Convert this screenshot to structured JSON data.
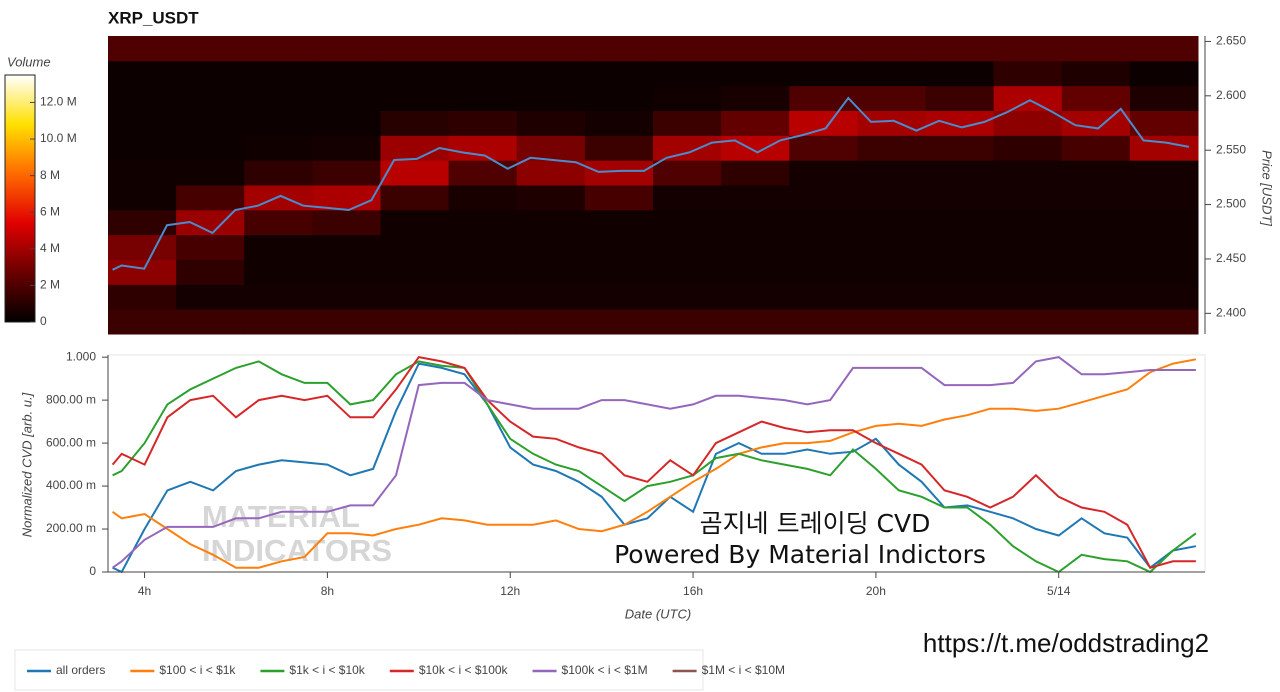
{
  "chart_data": [
    {
      "type": "heatmap",
      "title": "XRP_USDT",
      "y_label": "Price [USDT]",
      "x": [
        3.3,
        3.5,
        4.0,
        4.5,
        5.0,
        5.5,
        6.0,
        6.5,
        7.0,
        7.5,
        8.0,
        8.5,
        9.0,
        9.5,
        10.0,
        10.5,
        11.0,
        11.5,
        12.0,
        12.5,
        13.0,
        13.5,
        14.0,
        14.5,
        15.0,
        15.5,
        16.0,
        16.5,
        17.0,
        17.5,
        18.0,
        18.5,
        19.0,
        19.5,
        20.0,
        20.5,
        21.0,
        21.5,
        22.0,
        22.5,
        23.0,
        23.5,
        24.0,
        24.5,
        25.0,
        25.5,
        26.0,
        26.5,
        27.0
      ],
      "xlim": [
        3.2,
        27.2
      ],
      "ylim": [
        2.381,
        2.655
      ],
      "yticks": [
        {
          "value": 2.4,
          "label": "2.400"
        },
        {
          "value": 2.45,
          "label": "2.450"
        },
        {
          "value": 2.5,
          "label": "2.500"
        },
        {
          "value": 2.55,
          "label": "2.550"
        },
        {
          "value": 2.6,
          "label": "2.600"
        },
        {
          "value": 2.65,
          "label": "2.650"
        }
      ],
      "price": {
        "color": "#4a8ccc",
        "values": [
          2.44,
          2.444,
          2.441,
          2.481,
          2.484,
          2.474,
          2.495,
          2.499,
          2.508,
          2.499,
          2.497,
          2.495,
          2.504,
          2.541,
          2.542,
          2.552,
          2.548,
          2.545,
          2.533,
          2.543,
          2.541,
          2.539,
          2.53,
          2.531,
          2.531,
          2.543,
          2.548,
          2.557,
          2.559,
          2.548,
          2.559,
          2.564,
          2.57,
          2.598,
          2.576,
          2.577,
          2.568,
          2.577,
          2.571,
          2.576,
          2.585,
          2.596,
          2.585,
          2.573,
          2.57,
          2.588,
          2.559,
          2.557,
          2.553
        ]
      },
      "z": [
        [
          1.5,
          1.5,
          1.5,
          1.5,
          1.5,
          1.5,
          1.5,
          1.5,
          1.5,
          1.5,
          1.5,
          1.5,
          1.5,
          1.5,
          1.5,
          1.5
        ],
        [
          1.2,
          0.5,
          0.5,
          0.5,
          0.5,
          0.5,
          0.5,
          0.5,
          0.5,
          0.5,
          0.5,
          0.5,
          0.5,
          0.5,
          0.5,
          0.5
        ],
        [
          3.5,
          1.2,
          0.4,
          0.4,
          0.4,
          0.4,
          0.4,
          0.4,
          0.4,
          0.4,
          0.4,
          0.4,
          0.4,
          0.4,
          0.4,
          0.4
        ],
        [
          3.0,
          1.8,
          0.4,
          0.4,
          0.4,
          0.4,
          0.4,
          0.4,
          0.4,
          0.4,
          0.4,
          0.4,
          0.4,
          0.4,
          0.4,
          0.4
        ],
        [
          1.2,
          3.8,
          1.8,
          1.5,
          0.4,
          0.4,
          0.4,
          0.4,
          0.4,
          0.4,
          0.4,
          0.4,
          0.4,
          0.4,
          0.4,
          0.4
        ],
        [
          0.4,
          1.8,
          4.0,
          4.2,
          1.5,
          0.6,
          0.8,
          1.8,
          0.5,
          0.5,
          0.5,
          0.5,
          0.5,
          0.5,
          0.5,
          0.5
        ],
        [
          0.4,
          0.4,
          1.2,
          1.5,
          4.5,
          2.0,
          3.5,
          4.0,
          2.0,
          1.2,
          0.5,
          0.5,
          0.5,
          0.5,
          0.5,
          0.5
        ],
        [
          0.3,
          0.3,
          0.4,
          0.5,
          3.8,
          4.2,
          3.0,
          1.5,
          4.0,
          4.5,
          2.0,
          1.5,
          1.5,
          1.2,
          1.8,
          4.0
        ],
        [
          0.3,
          0.3,
          0.3,
          0.3,
          1.0,
          1.2,
          0.8,
          0.5,
          1.5,
          2.5,
          4.5,
          4.0,
          4.2,
          3.5,
          4.0,
          2.5
        ],
        [
          0.3,
          0.3,
          0.3,
          0.3,
          0.3,
          0.3,
          0.3,
          0.3,
          0.4,
          0.6,
          2.0,
          2.0,
          1.5,
          4.2,
          2.5,
          0.8
        ],
        [
          0.3,
          0.3,
          0.3,
          0.3,
          0.3,
          0.3,
          0.3,
          0.3,
          0.3,
          0.3,
          0.3,
          0.3,
          0.3,
          1.2,
          0.8,
          0.3
        ],
        [
          2.0,
          2.0,
          2.0,
          2.0,
          2.0,
          2.0,
          2.0,
          2.0,
          2.0,
          2.0,
          2.0,
          2.0,
          2.0,
          2.0,
          2.0,
          2.0
        ]
      ],
      "zlim": [
        0,
        13.5
      ],
      "colorscale": [
        "#000000",
        "#6a0000",
        "#e00000",
        "#ff6a00",
        "#ffe000",
        "#ffffff"
      ],
      "colorbar_title": "Volume",
      "colorbar_ticks": [
        0,
        {
          "value": 2,
          "label": "2 M"
        },
        {
          "value": 4,
          "label": "4 M"
        },
        {
          "value": 6,
          "label": "6 M"
        },
        {
          "value": 8,
          "label": "8 M"
        },
        {
          "value": 10,
          "label": "10.0 M"
        },
        {
          "value": 12,
          "label": "12.0 M"
        }
      ]
    },
    {
      "type": "line",
      "x_label": "Date (UTC)",
      "y_label": "Normalized CVD [arb. u.]",
      "x": [
        3.3,
        3.5,
        4.0,
        4.5,
        5.0,
        5.5,
        6.0,
        6.5,
        7.0,
        7.5,
        8.0,
        8.5,
        9.0,
        9.5,
        10.0,
        10.5,
        11.0,
        11.5,
        12.0,
        12.5,
        13.0,
        13.5,
        14.0,
        14.5,
        15.0,
        15.5,
        16.0,
        16.5,
        17.0,
        17.5,
        18.0,
        18.5,
        19.0,
        19.5,
        20.0,
        20.5,
        21.0,
        21.5,
        22.0,
        22.5,
        23.0,
        23.5,
        24.0,
        24.5,
        25.0,
        25.5,
        26.0,
        26.5,
        27.0
      ],
      "xlim": [
        3.2,
        27.2
      ],
      "ylim": [
        0,
        1.01
      ],
      "xticks": [
        {
          "value": 4,
          "label": "4h"
        },
        {
          "value": 8,
          "label": "8h"
        },
        {
          "value": 12,
          "label": "12h"
        },
        {
          "value": 16,
          "label": "16h"
        },
        {
          "value": 20,
          "label": "20h"
        },
        {
          "value": 24,
          "label": "5/14"
        }
      ],
      "yticks": [
        0,
        {
          "value": 0.2,
          "label": "200.00 m"
        },
        {
          "value": 0.4,
          "label": "400.00 m"
        },
        {
          "value": 0.6,
          "label": "600.00 m"
        },
        {
          "value": 0.8,
          "label": "800.00 m"
        },
        {
          "value": 1,
          "label": "1.000"
        }
      ],
      "legend": "bottom",
      "series": [
        {
          "name": "all orders",
          "color": "#1f77b4",
          "values": [
            0.02,
            0,
            0.2,
            0.38,
            0.42,
            0.38,
            0.47,
            0.5,
            0.52,
            0.51,
            0.5,
            0.45,
            0.48,
            0.75,
            0.97,
            0.95,
            0.92,
            0.78,
            0.58,
            0.5,
            0.47,
            0.42,
            0.35,
            0.22,
            0.25,
            0.35,
            0.28,
            0.55,
            0.6,
            0.55,
            0.55,
            0.57,
            0.55,
            0.56,
            0.62,
            0.5,
            0.42,
            0.3,
            0.31,
            0.28,
            0.25,
            0.2,
            0.17,
            0.25,
            0.18,
            0.16,
            0.02,
            0.1,
            0.12
          ]
        },
        {
          "name": "$100 < i < $1k",
          "color": "#ff7f0e",
          "values": [
            0.28,
            0.25,
            0.27,
            0.2,
            0.13,
            0.08,
            0.02,
            0.02,
            0.05,
            0.07,
            0.18,
            0.18,
            0.17,
            0.2,
            0.22,
            0.25,
            0.24,
            0.22,
            0.22,
            0.22,
            0.24,
            0.2,
            0.19,
            0.22,
            0.28,
            0.35,
            0.42,
            0.48,
            0.55,
            0.58,
            0.6,
            0.6,
            0.61,
            0.65,
            0.68,
            0.69,
            0.68,
            0.71,
            0.73,
            0.76,
            0.76,
            0.75,
            0.76,
            0.79,
            0.82,
            0.85,
            0.93,
            0.97,
            0.99
          ]
        },
        {
          "name": "$1k < i < $10k",
          "color": "#2ca02c",
          "values": [
            0.45,
            0.47,
            0.6,
            0.78,
            0.85,
            0.9,
            0.95,
            0.98,
            0.92,
            0.88,
            0.88,
            0.78,
            0.8,
            0.92,
            0.98,
            0.96,
            0.95,
            0.78,
            0.62,
            0.55,
            0.5,
            0.47,
            0.4,
            0.33,
            0.4,
            0.42,
            0.45,
            0.53,
            0.55,
            0.52,
            0.5,
            0.48,
            0.45,
            0.57,
            0.48,
            0.38,
            0.35,
            0.3,
            0.3,
            0.22,
            0.12,
            0.05,
            0,
            0.08,
            0.06,
            0.05,
            0,
            0.1,
            0.18
          ]
        },
        {
          "name": "$10k < i < $100k",
          "color": "#d62728",
          "values": [
            0.5,
            0.55,
            0.5,
            0.72,
            0.8,
            0.82,
            0.72,
            0.8,
            0.82,
            0.8,
            0.82,
            0.72,
            0.72,
            0.85,
            1,
            0.98,
            0.95,
            0.8,
            0.7,
            0.63,
            0.62,
            0.58,
            0.55,
            0.45,
            0.42,
            0.52,
            0.45,
            0.6,
            0.65,
            0.7,
            0.67,
            0.65,
            0.66,
            0.66,
            0.6,
            0.55,
            0.5,
            0.38,
            0.35,
            0.3,
            0.35,
            0.45,
            0.35,
            0.3,
            0.28,
            0.22,
            0.02,
            0.05,
            0.05
          ]
        },
        {
          "name": "$100k < i < $1M",
          "color": "#9467bd",
          "values": [
            0.02,
            0.05,
            0.15,
            0.21,
            0.21,
            0.21,
            0.25,
            0.25,
            0.28,
            0.28,
            0.28,
            0.31,
            0.31,
            0.45,
            0.87,
            0.88,
            0.88,
            0.8,
            0.78,
            0.76,
            0.76,
            0.76,
            0.8,
            0.8,
            0.78,
            0.76,
            0.78,
            0.82,
            0.82,
            0.81,
            0.8,
            0.78,
            0.8,
            0.95,
            0.95,
            0.95,
            0.95,
            0.87,
            0.87,
            0.87,
            0.88,
            0.98,
            1,
            0.92,
            0.92,
            0.93,
            0.94,
            0.94,
            0.94
          ]
        },
        {
          "name": "$1M < i < $10M",
          "color": "#8c564b",
          "values": [
            null,
            null,
            null,
            null,
            null,
            null,
            null,
            null,
            null,
            null,
            null,
            null,
            null,
            null,
            null,
            null,
            null,
            null,
            null,
            null,
            null,
            null,
            null,
            null,
            null,
            null,
            null,
            null,
            null,
            null,
            null,
            null,
            null,
            null,
            null,
            null,
            null,
            null,
            null,
            null,
            null,
            null,
            null,
            null,
            null,
            null,
            null,
            null,
            null
          ]
        }
      ],
      "watermark": [
        "MATERIAL",
        "INDICATORS"
      ],
      "annotations": [
        "곰지네 트레이딩 CVD",
        "Powered By Material Indictors"
      ]
    }
  ],
  "link": "https://t.me/oddstrading2"
}
